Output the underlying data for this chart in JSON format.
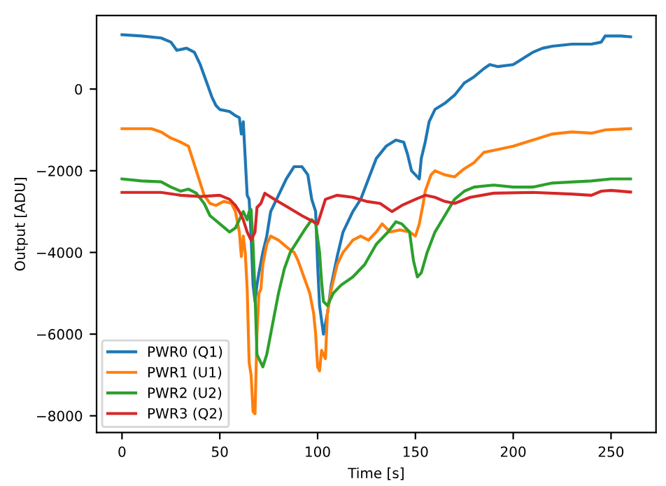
{
  "chart_data": {
    "type": "line",
    "xlabel": "Time [s]",
    "ylabel": "Output [ADU]",
    "xlim": [
      -13,
      273
    ],
    "ylim": [
      -8410,
      1800
    ],
    "xticks": [
      0,
      50,
      100,
      150,
      200,
      250
    ],
    "yticks": [
      {
        "value": -8000,
        "label": "−8000"
      },
      {
        "value": -6000,
        "label": "−6000"
      },
      {
        "value": -4000,
        "label": "−4000"
      },
      {
        "value": -2000,
        "label": "−2000"
      },
      0
    ],
    "grid": false,
    "legend": "bottom left",
    "series": [
      {
        "name": "PWR0 (Q1)",
        "color": "#1f77b4",
        "x": [
          0,
          10,
          20,
          25,
          28,
          33,
          37,
          40,
          43,
          46,
          48,
          50,
          55,
          58,
          60,
          61,
          62,
          63,
          64,
          65,
          66,
          67,
          68,
          69,
          70,
          72,
          74,
          76,
          80,
          84,
          88,
          92,
          95,
          97,
          99,
          100,
          101,
          103,
          105,
          107,
          110,
          113,
          118,
          122,
          126,
          130,
          135,
          140,
          144,
          146,
          148,
          150,
          152,
          153,
          155,
          157,
          160,
          165,
          170,
          175,
          180,
          185,
          188,
          192,
          200,
          205,
          210,
          215,
          220,
          230,
          240,
          245,
          247,
          255,
          260
        ],
        "values": [
          1330,
          1300,
          1250,
          1150,
          950,
          1000,
          900,
          600,
          200,
          -200,
          -400,
          -500,
          -550,
          -650,
          -700,
          -1100,
          -800,
          -1700,
          -2600,
          -2700,
          -3600,
          -4800,
          -5200,
          -4800,
          -4500,
          -4000,
          -3600,
          -3000,
          -2600,
          -2200,
          -1900,
          -1900,
          -2100,
          -2700,
          -3000,
          -4300,
          -5300,
          -6000,
          -5500,
          -4800,
          -4100,
          -3500,
          -3000,
          -2700,
          -2200,
          -1700,
          -1400,
          -1250,
          -1300,
          -1600,
          -2000,
          -2100,
          -2200,
          -1700,
          -1300,
          -800,
          -500,
          -350,
          -150,
          150,
          300,
          500,
          600,
          550,
          600,
          750,
          900,
          1000,
          1050,
          1100,
          1100,
          1150,
          1300,
          1300,
          1280
        ]
      },
      {
        "name": "PWR1 (U1)",
        "color": "#ff7f0e",
        "x": [
          0,
          15,
          20,
          25,
          30,
          34,
          36,
          38,
          40,
          42,
          45,
          48,
          52,
          56,
          58,
          60,
          61,
          62,
          63,
          64,
          65,
          66,
          67,
          68,
          69,
          70,
          71,
          72,
          74,
          76,
          80,
          85,
          88,
          90,
          93,
          96,
          98,
          99,
          100,
          101,
          102,
          104,
          105,
          107,
          110,
          113,
          118,
          122,
          126,
          130,
          133,
          137,
          142,
          147,
          150,
          152,
          154,
          155,
          158,
          160,
          165,
          170,
          175,
          180,
          185,
          190,
          200,
          210,
          220,
          230,
          240,
          247,
          255,
          260
        ],
        "values": [
          -970,
          -970,
          -1050,
          -1200,
          -1300,
          -1400,
          -1700,
          -2000,
          -2300,
          -2600,
          -2800,
          -2850,
          -2750,
          -2800,
          -3000,
          -3500,
          -4100,
          -3600,
          -4000,
          -4900,
          -6700,
          -7000,
          -7900,
          -7950,
          -6000,
          -5000,
          -4900,
          -4300,
          -3800,
          -3600,
          -3700,
          -3900,
          -4000,
          -4200,
          -4600,
          -5000,
          -5500,
          -6000,
          -6800,
          -6900,
          -6400,
          -6600,
          -5500,
          -4900,
          -4300,
          -4000,
          -3700,
          -3600,
          -3700,
          -3500,
          -3300,
          -3500,
          -3450,
          -3500,
          -3600,
          -3300,
          -2800,
          -2500,
          -2100,
          -2000,
          -2100,
          -2150,
          -1950,
          -1800,
          -1550,
          -1500,
          -1400,
          -1250,
          -1100,
          -1050,
          -1080,
          -1000,
          -980,
          -970
        ]
      },
      {
        "name": "PWR2 (U2)",
        "color": "#2ca02c",
        "x": [
          0,
          10,
          20,
          25,
          30,
          34,
          38,
          42,
          45,
          50,
          55,
          58,
          60,
          62,
          64,
          65,
          66,
          67,
          68,
          69,
          70,
          72,
          74,
          76,
          78,
          80,
          83,
          86,
          90,
          94,
          97,
          99,
          101,
          102,
          103,
          105,
          108,
          112,
          118,
          124,
          130,
          136,
          140,
          143,
          147,
          149,
          151,
          153,
          156,
          160,
          165,
          170,
          175,
          180,
          190,
          200,
          210,
          220,
          240,
          250,
          260
        ],
        "values": [
          -2200,
          -2250,
          -2270,
          -2400,
          -2500,
          -2450,
          -2550,
          -2800,
          -3100,
          -3300,
          -3500,
          -3400,
          -3200,
          -3000,
          -3200,
          -3000,
          -2950,
          -3800,
          -5000,
          -6500,
          -6600,
          -6800,
          -6500,
          -6000,
          -5500,
          -5000,
          -4400,
          -4000,
          -3700,
          -3400,
          -3200,
          -3300,
          -4000,
          -4700,
          -5200,
          -5300,
          -5000,
          -4800,
          -4600,
          -4300,
          -3800,
          -3500,
          -3250,
          -3300,
          -3500,
          -4200,
          -4600,
          -4500,
          -4000,
          -3500,
          -3100,
          -2700,
          -2500,
          -2400,
          -2350,
          -2400,
          -2400,
          -2300,
          -2250,
          -2200,
          -2200
        ]
      },
      {
        "name": "PWR3 (Q2)",
        "color": "#d62728",
        "x": [
          0,
          20,
          30,
          40,
          50,
          55,
          58,
          60,
          62,
          64,
          66,
          68,
          69,
          71,
          73,
          78,
          85,
          92,
          96,
          100,
          102,
          104,
          110,
          118,
          125,
          132,
          138,
          143,
          150,
          155,
          160,
          165,
          170,
          178,
          190,
          210,
          230,
          240,
          245,
          250,
          260
        ],
        "values": [
          -2530,
          -2530,
          -2600,
          -2630,
          -2600,
          -2700,
          -2850,
          -3000,
          -3200,
          -3500,
          -3700,
          -3500,
          -2900,
          -2800,
          -2550,
          -2700,
          -2900,
          -3100,
          -3200,
          -3300,
          -3000,
          -2700,
          -2600,
          -2650,
          -2750,
          -2800,
          -3000,
          -2850,
          -2700,
          -2600,
          -2650,
          -2750,
          -2800,
          -2650,
          -2550,
          -2530,
          -2570,
          -2600,
          -2500,
          -2480,
          -2520
        ]
      }
    ]
  }
}
